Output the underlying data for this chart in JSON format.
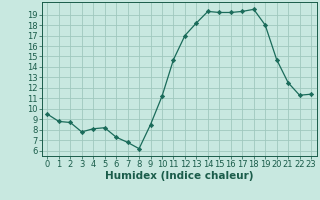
{
  "x": [
    0,
    1,
    2,
    3,
    4,
    5,
    6,
    7,
    8,
    9,
    10,
    11,
    12,
    13,
    14,
    15,
    16,
    17,
    18,
    19,
    20,
    21,
    22,
    23
  ],
  "y": [
    9.5,
    8.8,
    8.7,
    7.8,
    8.1,
    8.2,
    7.3,
    6.8,
    6.2,
    8.5,
    11.2,
    14.7,
    17.0,
    18.2,
    19.3,
    19.2,
    19.2,
    19.3,
    19.5,
    18.0,
    14.7,
    12.5,
    11.3,
    11.4
  ],
  "xlabel": "Humidex (Indice chaleur)",
  "xlim": [
    -0.5,
    23.5
  ],
  "ylim": [
    5.5,
    20.2
  ],
  "xticks": [
    0,
    1,
    2,
    3,
    4,
    5,
    6,
    7,
    8,
    9,
    10,
    11,
    12,
    13,
    14,
    15,
    16,
    17,
    18,
    19,
    20,
    21,
    22,
    23
  ],
  "yticks": [
    6,
    7,
    8,
    9,
    10,
    11,
    12,
    13,
    14,
    15,
    16,
    17,
    18,
    19
  ],
  "line_color": "#1a6b5a",
  "marker_color": "#1a6b5a",
  "bg_color": "#c8e8e0",
  "grid_color": "#a0c8be",
  "label_fontsize": 7.5,
  "tick_fontsize": 6.0
}
